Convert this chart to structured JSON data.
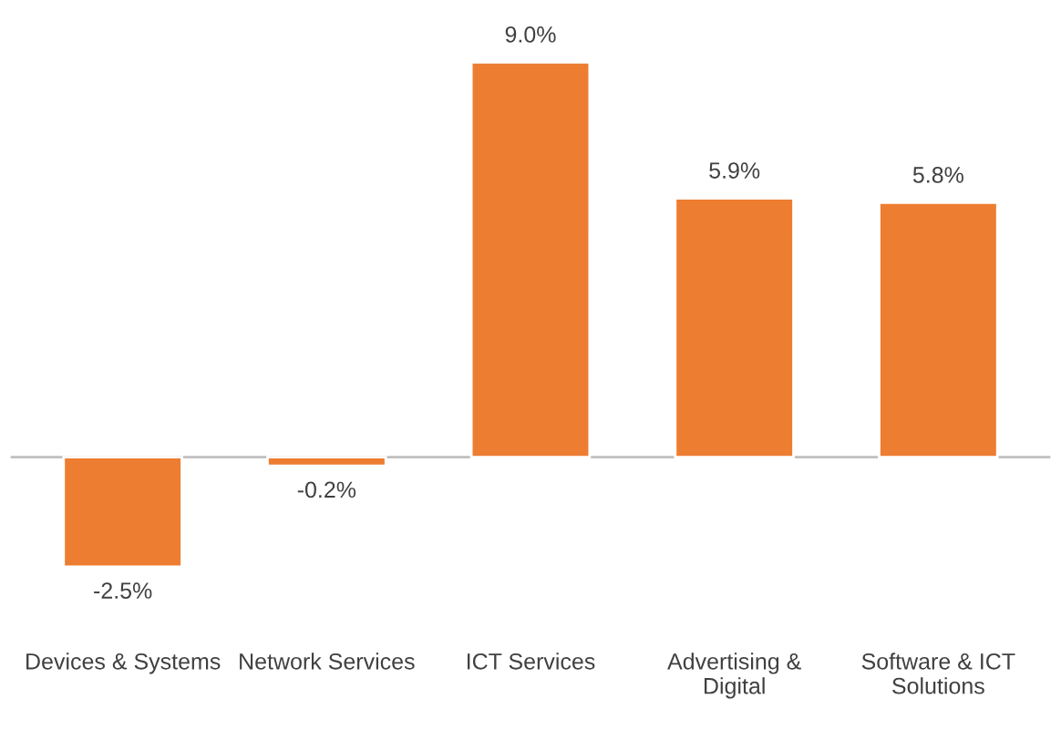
{
  "chart_data": {
    "type": "bar",
    "categories": [
      "Devices & Systems",
      "Network Services",
      "ICT Services",
      "Advertising & Digital",
      "Software & ICT Solutions"
    ],
    "values": [
      -2.5,
      -0.2,
      9.0,
      5.9,
      5.8
    ],
    "value_labels": [
      "-2.5%",
      "-0.2%",
      "9.0%",
      "5.9%",
      "5.8%"
    ],
    "color": "#ed7d31",
    "grid": false,
    "legend": false
  }
}
